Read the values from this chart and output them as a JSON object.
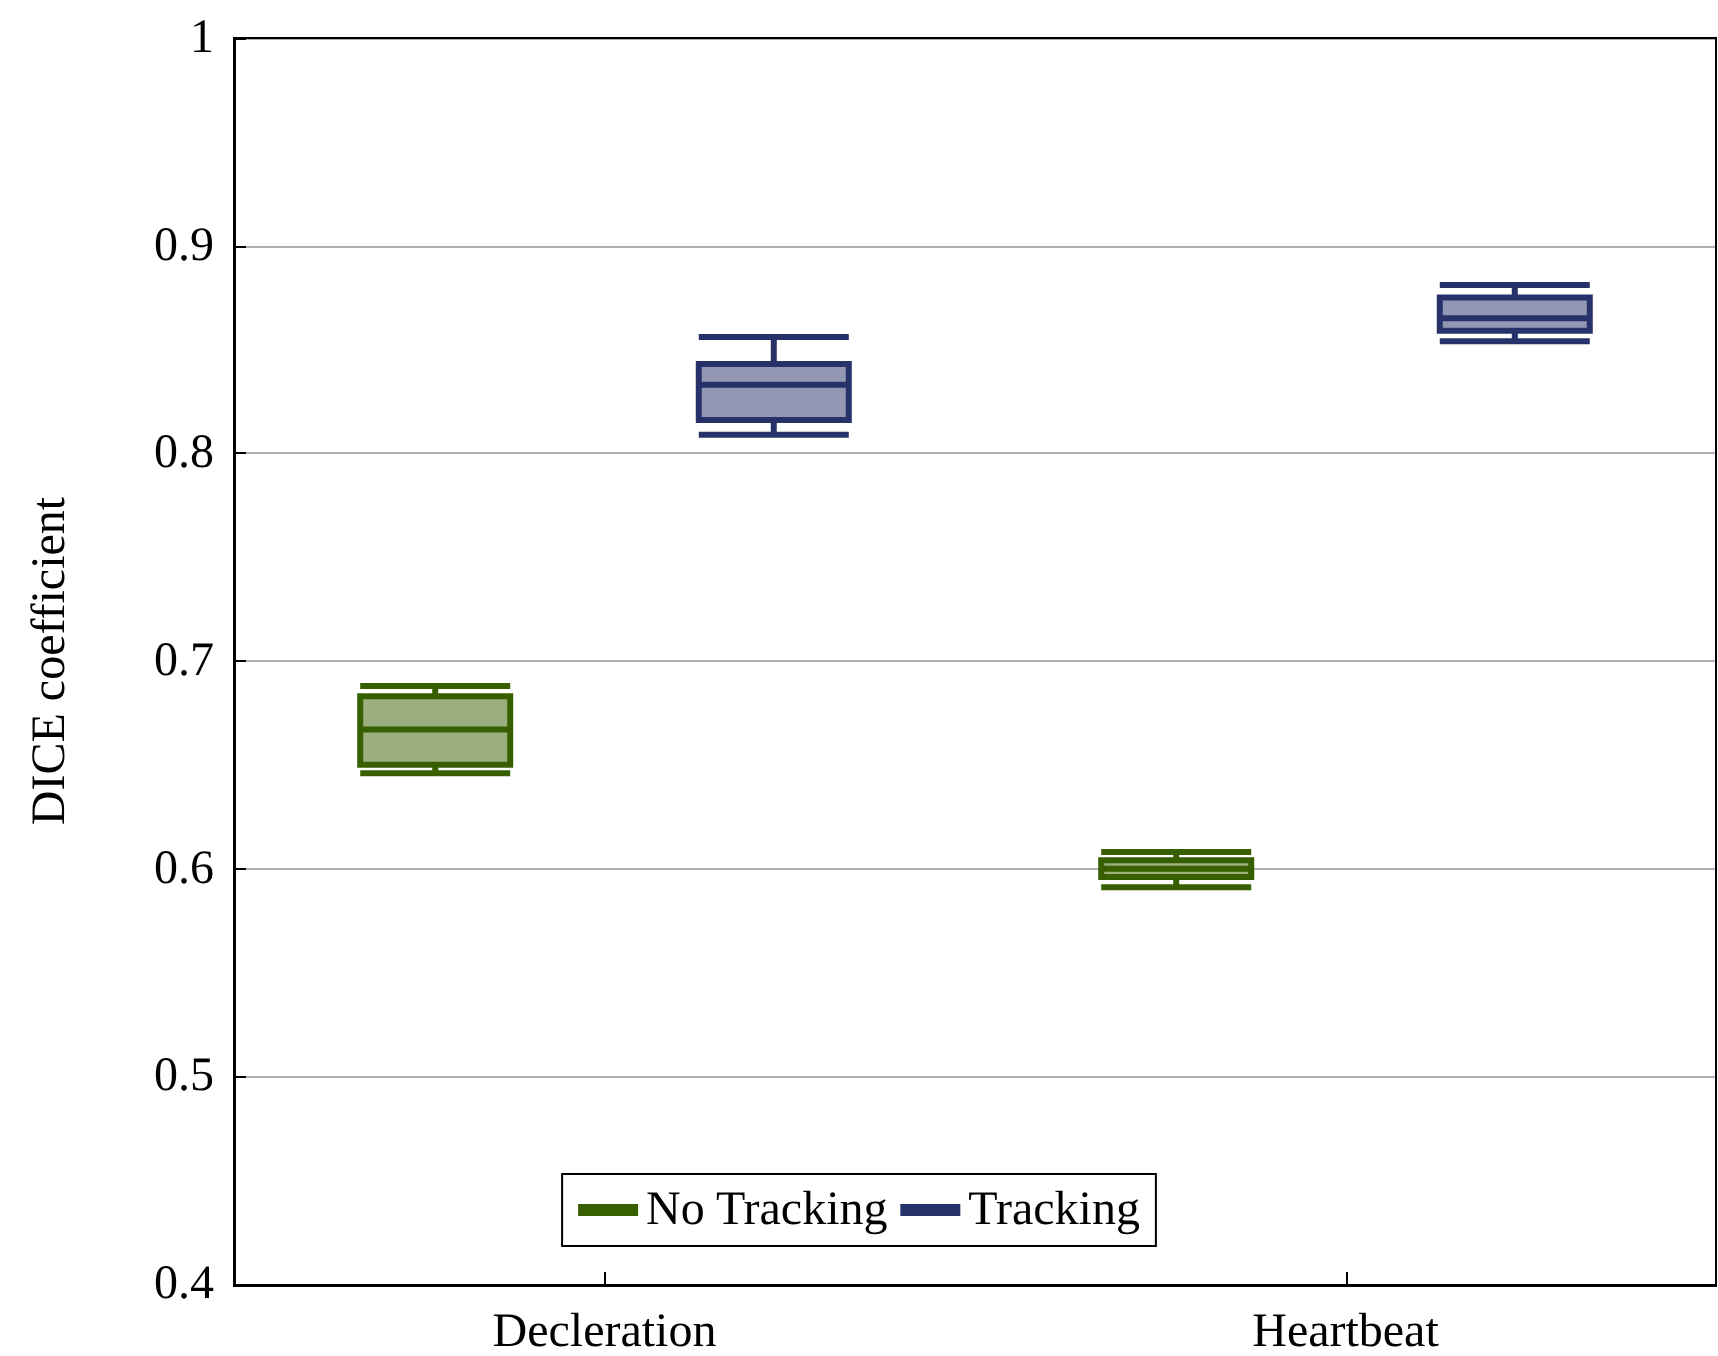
{
  "chart_data": {
    "type": "box",
    "ylabel": "DICE coefficient",
    "categories": [
      "Decleration",
      "Heartbeat"
    ],
    "series": [
      {
        "name": "No Tracking",
        "color": "#375f00",
        "boxes": [
          {
            "low": 0.646,
            "q1": 0.65,
            "median": 0.667,
            "q3": 0.683,
            "high": 0.688
          },
          {
            "low": 0.591,
            "q1": 0.596,
            "median": 0.6,
            "q3": 0.604,
            "high": 0.608
          }
        ]
      },
      {
        "name": "Tracking",
        "color": "#263269",
        "boxes": [
          {
            "low": 0.809,
            "q1": 0.816,
            "median": 0.833,
            "q3": 0.843,
            "high": 0.856
          },
          {
            "low": 0.854,
            "q1": 0.859,
            "median": 0.865,
            "q3": 0.875,
            "high": 0.881
          }
        ]
      }
    ],
    "ylim": [
      0.4,
      1
    ],
    "yticks": [
      0.4,
      0.5,
      0.6,
      0.7,
      0.8,
      0.9,
      1
    ],
    "grid": "y",
    "legend": "bottom"
  }
}
